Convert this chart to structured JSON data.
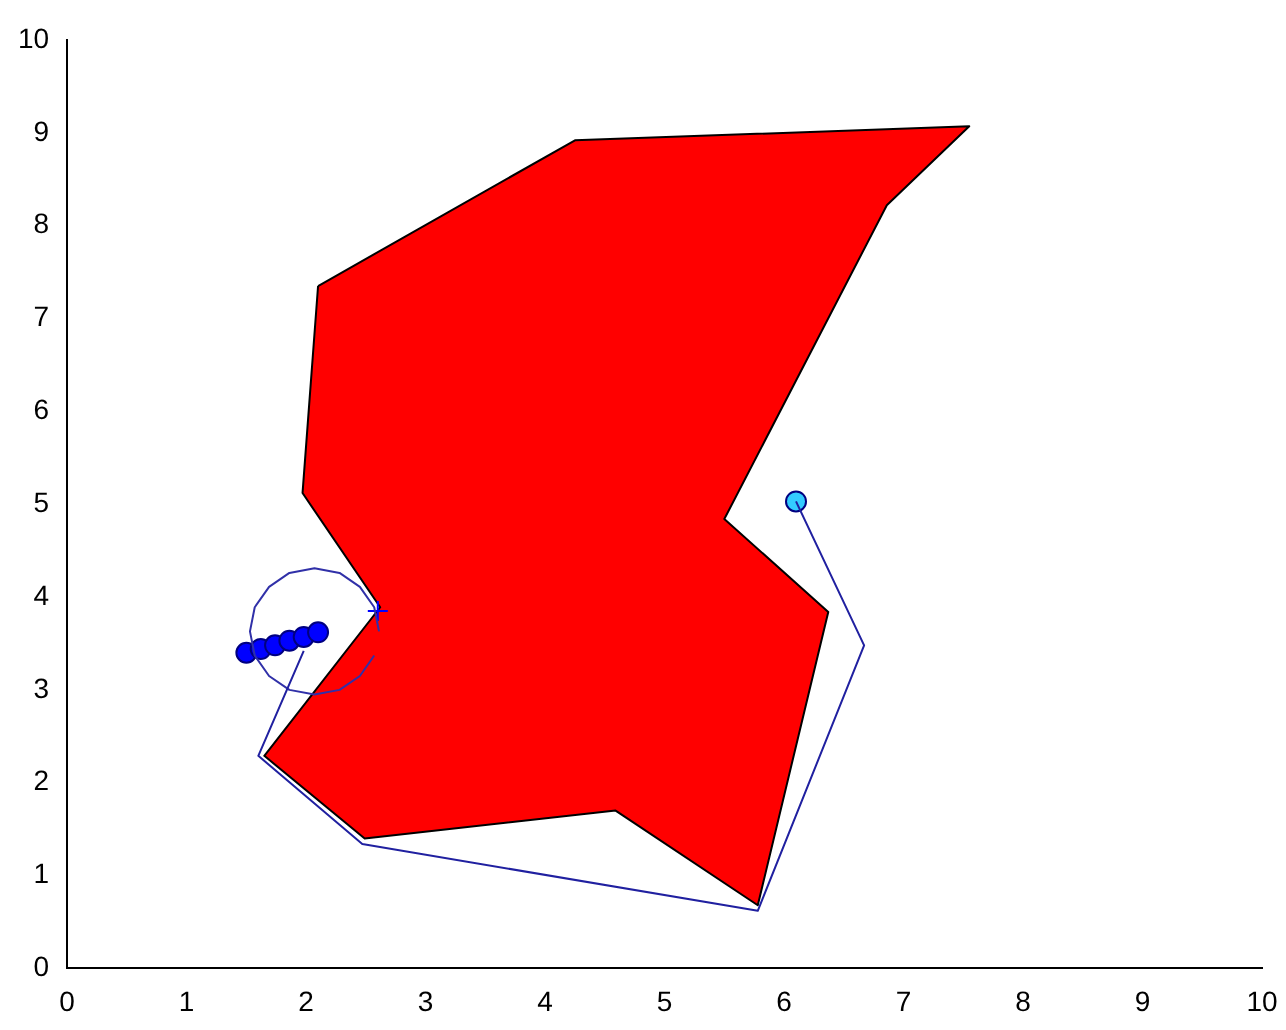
{
  "chart_data": {
    "type": "line",
    "xlim": [
      0,
      10
    ],
    "ylim": [
      0,
      10
    ],
    "xticks": [
      0,
      1,
      2,
      3,
      4,
      5,
      6,
      7,
      8,
      9,
      10
    ],
    "yticks": [
      0,
      1,
      2,
      3,
      4,
      5,
      6,
      7,
      8,
      9,
      10
    ],
    "grid": false,
    "legend": false,
    "marker": "none",
    "series": [
      {
        "type": "area",
        "color": "#ff0000",
        "x": [
          2.1,
          4.25,
          7.55,
          6.86,
          5.5,
          6.37,
          5.78,
          4.59,
          2.49,
          1.65,
          2.62,
          1.97,
          2.1
        ],
        "values": [
          7.35,
          8.92,
          9.07,
          8.22,
          4.84,
          3.84,
          0.68,
          1.7,
          1.4,
          2.29,
          3.89,
          5.12,
          7.35
        ]
      },
      {
        "color": "#2020a0",
        "x": [
          6.1,
          6.67,
          5.78,
          2.47,
          1.6,
          1.98
        ],
        "values": [
          5.03,
          3.48,
          0.62,
          1.34,
          2.29,
          3.42
        ]
      },
      {
        "color": "#3030a8",
        "x": [
          2.61,
          2.57,
          2.45,
          2.28,
          2.07,
          1.86,
          1.69,
          1.57,
          1.53,
          1.57,
          1.69,
          1.86,
          2.07,
          2.28,
          2.45,
          2.57
        ],
        "values": [
          3.63,
          3.89,
          4.11,
          4.26,
          4.31,
          4.26,
          4.11,
          3.89,
          3.63,
          3.37,
          3.15,
          3.0,
          2.95,
          3.0,
          3.15,
          3.37
        ]
      },
      {
        "type": "scatter",
        "color": "#0000ff",
        "marker": "circle",
        "x": [
          1.5,
          1.62,
          1.74,
          1.86,
          1.98,
          2.1
        ],
        "values": [
          3.4,
          3.44,
          3.48,
          3.53,
          3.57,
          3.62
        ]
      },
      {
        "type": "scatter",
        "color": "#0000ff",
        "marker": "cross",
        "x": [
          2.6
        ],
        "values": [
          3.85
        ]
      },
      {
        "type": "scatter",
        "color": "#33ccff",
        "marker": "circle",
        "x": [
          6.1
        ],
        "values": [
          5.03
        ]
      }
    ]
  }
}
